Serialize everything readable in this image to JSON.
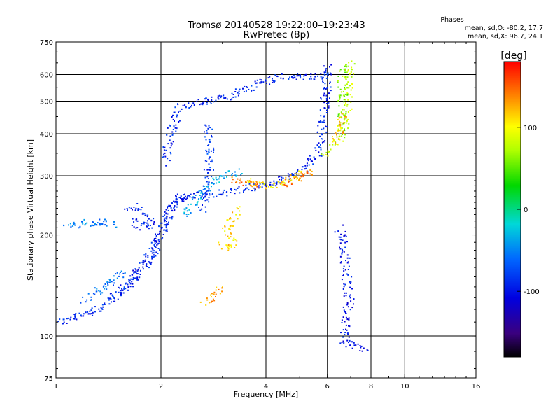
{
  "chart_data": {
    "type": "scatter",
    "title": "Tromsø 20140528  19:22:00–19:23:43",
    "subtitle": "RwPretec (8p)",
    "xlabel": "Frequency [MHz]",
    "ylabel": "Stationary phase Virtual Height [km]",
    "x_scale": "log",
    "y_scale": "log",
    "xlim": [
      1,
      16
    ],
    "ylim": [
      75,
      750
    ],
    "x_ticks": [
      1,
      2,
      4,
      6,
      8,
      10,
      16
    ],
    "x_tick_labels": [
      "1",
      "2",
      "4",
      "6",
      "8",
      "10",
      "16"
    ],
    "x_grid_lines": [
      2,
      4,
      6,
      8,
      10
    ],
    "y_ticks": [
      75,
      100,
      200,
      300,
      400,
      500,
      600,
      750
    ],
    "y_tick_labels": [
      "75",
      "100",
      "200",
      "300",
      "400",
      "500",
      "600",
      "750"
    ],
    "y_grid_lines": [
      100,
      200,
      300,
      400,
      500,
      600
    ],
    "grid": true,
    "stats": {
      "heading": "Phases",
      "line_o": "mean, sd,O: -80.2, 17.7",
      "line_x": "mean, sd,X:  96.7, 24.1"
    },
    "colorbar": {
      "label": "[deg]",
      "min": -180,
      "max": 180,
      "ticks": [
        100,
        0,
        -100
      ],
      "tick_labels": [
        "100",
        "0",
        "-100"
      ]
    },
    "series": [
      {
        "traces": [
          {
            "phase": -90,
            "points": [
              [
                1.0,
                110
              ],
              [
                1.1,
                113
              ],
              [
                1.2,
                117
              ],
              [
                1.35,
                122
              ],
              [
                1.5,
                132
              ],
              [
                1.65,
                148
              ],
              [
                1.8,
                165
              ],
              [
                1.95,
                190
              ],
              [
                2.05,
                220
              ],
              [
                2.15,
                250
              ],
              [
                2.3,
                262
              ],
              [
                2.6,
                265
              ],
              [
                3.0,
                268
              ],
              [
                3.5,
                275
              ],
              [
                4.0,
                283
              ],
              [
                4.5,
                293
              ],
              [
                5.0,
                310
              ],
              [
                5.3,
                325
              ],
              [
                5.6,
                355
              ],
              [
                5.75,
                400
              ],
              [
                5.85,
                470
              ],
              [
                5.95,
                560
              ],
              [
                6.0,
                640
              ]
            ]
          },
          {
            "phase": -95,
            "points": [
              [
                1.45,
                130
              ],
              [
                1.6,
                145
              ],
              [
                1.75,
                160
              ],
              [
                1.9,
                180
              ],
              [
                2.0,
                205
              ],
              [
                2.1,
                235
              ],
              [
                2.2,
                255
              ],
              [
                2.4,
                260
              ]
            ]
          },
          {
            "phase": -90,
            "points": [
              [
                2.05,
                330
              ],
              [
                2.1,
                380
              ],
              [
                2.15,
                430
              ],
              [
                2.25,
                480
              ],
              [
                2.5,
                495
              ],
              [
                2.8,
                505
              ],
              [
                3.2,
                525
              ],
              [
                3.5,
                545
              ],
              [
                3.8,
                570
              ],
              [
                4.2,
                585
              ],
              [
                4.6,
                595
              ],
              [
                5.2,
                590
              ],
              [
                5.8,
                600
              ]
            ]
          },
          {
            "phase": -95,
            "points": [
              [
                1.6,
                235
              ],
              [
                1.7,
                245
              ],
              [
                1.8,
                230
              ],
              [
                1.9,
                218
              ],
              [
                1.75,
                212
              ],
              [
                1.65,
                222
              ]
            ]
          },
          {
            "phase": -60,
            "points": [
              [
                1.2,
                128
              ],
              [
                1.3,
                135
              ],
              [
                1.42,
                145
              ],
              [
                1.5,
                152
              ],
              [
                1.55,
                157
              ]
            ]
          },
          {
            "phase": -55,
            "points": [
              [
                1.05,
                212
              ],
              [
                1.2,
                218
              ],
              [
                1.35,
                220
              ],
              [
                1.45,
                215
              ]
            ]
          },
          {
            "phase": -35,
            "points": [
              [
                2.3,
                230
              ],
              [
                2.45,
                250
              ],
              [
                2.6,
                270
              ],
              [
                2.75,
                285
              ],
              [
                3.0,
                300
              ],
              [
                3.3,
                310
              ]
            ]
          },
          {
            "phase": -80,
            "points": [
              [
                2.6,
                240
              ],
              [
                2.7,
                280
              ],
              [
                2.75,
                330
              ],
              [
                2.75,
                380
              ],
              [
                2.7,
                420
              ]
            ]
          },
          {
            "phase": 110,
            "points": [
              [
                3.5,
                290
              ],
              [
                3.8,
                285
              ],
              [
                4.1,
                282
              ],
              [
                4.4,
                285
              ],
              [
                4.6,
                290
              ],
              [
                4.8,
                300
              ],
              [
                5.0,
                305
              ]
            ]
          },
          {
            "phase": 140,
            "points": [
              [
                4.5,
                285
              ],
              [
                4.8,
                292
              ],
              [
                5.1,
                298
              ],
              [
                5.4,
                310
              ]
            ]
          },
          {
            "phase": 140,
            "points": [
              [
                3.2,
                295
              ],
              [
                3.5,
                288
              ],
              [
                3.8,
                282
              ]
            ]
          },
          {
            "phase": 110,
            "points": [
              [
                3.0,
                190
              ],
              [
                3.1,
                182
              ],
              [
                3.2,
                188
              ],
              [
                3.15,
                198
              ],
              [
                3.05,
                208
              ],
              [
                3.2,
                225
              ],
              [
                3.3,
                238
              ]
            ]
          },
          {
            "phase": 130,
            "points": [
              [
                2.65,
                125
              ],
              [
                2.8,
                133
              ],
              [
                2.95,
                138
              ]
            ]
          },
          {
            "phase": 80,
            "points": [
              [
                5.8,
                345
              ],
              [
                6.1,
                362
              ],
              [
                6.4,
                385
              ],
              [
                6.6,
                412
              ],
              [
                6.75,
                440
              ],
              [
                6.8,
                480
              ],
              [
                6.85,
                530
              ],
              [
                6.9,
                600
              ],
              [
                6.95,
                650
              ]
            ]
          },
          {
            "phase": 60,
            "points": [
              [
                6.55,
                400
              ],
              [
                6.6,
                480
              ],
              [
                6.6,
                560
              ],
              [
                6.65,
                640
              ]
            ]
          },
          {
            "phase": 120,
            "points": [
              [
                6.25,
                380
              ],
              [
                6.4,
                400
              ],
              [
                6.55,
                430
              ],
              [
                6.6,
                455
              ]
            ]
          },
          {
            "phase": -100,
            "points": [
              [
                6.45,
                210
              ],
              [
                6.6,
                195
              ],
              [
                6.75,
                160
              ],
              [
                6.9,
                130
              ],
              [
                6.7,
                96
              ],
              [
                7.6,
                92
              ]
            ]
          }
        ]
      }
    ]
  }
}
